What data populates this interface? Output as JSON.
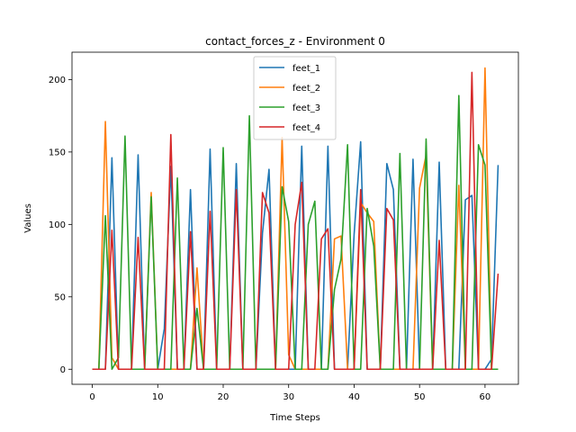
{
  "chart_data": {
    "type": "line",
    "title": "contact_forces_z - Environment 0",
    "xlabel": "Time Steps",
    "ylabel": "Values",
    "xlim": [
      -3.1,
      65.1
    ],
    "ylim": [
      -10.4,
      218.9
    ],
    "xticks": [
      0,
      10,
      20,
      30,
      40,
      50,
      60
    ],
    "yticks": [
      0,
      50,
      100,
      150,
      200
    ],
    "grid": false,
    "legend_position": "upper-center",
    "x": [
      0,
      1,
      2,
      3,
      4,
      5,
      6,
      7,
      8,
      9,
      10,
      11,
      12,
      13,
      14,
      15,
      16,
      17,
      18,
      19,
      20,
      21,
      22,
      23,
      24,
      25,
      26,
      27,
      28,
      29,
      30,
      31,
      32,
      33,
      34,
      35,
      36,
      37,
      38,
      39,
      40,
      41,
      42,
      43,
      44,
      45,
      46,
      47,
      48,
      49,
      50,
      51,
      52,
      53,
      54,
      55,
      56,
      57,
      58,
      59,
      60,
      61,
      62
    ],
    "series": [
      {
        "name": "feet_1",
        "color": "#1f77b4",
        "values": [
          0,
          0,
          0,
          146,
          0,
          0,
          0,
          148,
          0,
          0,
          0,
          28,
          140,
          0,
          0,
          124,
          0,
          0,
          152,
          0,
          0,
          0,
          142,
          0,
          0,
          0,
          94,
          138,
          0,
          0,
          0,
          0,
          154,
          0,
          0,
          0,
          154,
          0,
          0,
          0,
          93,
          157,
          0,
          0,
          0,
          142,
          124,
          0,
          0,
          145,
          0,
          0,
          0,
          143,
          0,
          0,
          0,
          117,
          120,
          0,
          0,
          7,
          141
        ]
      },
      {
        "name": "feet_2",
        "color": "#ff7f0e",
        "values": [
          0,
          0,
          171,
          8,
          0,
          0,
          0,
          0,
          0,
          122,
          0,
          0,
          0,
          0,
          0,
          0,
          70,
          0,
          0,
          0,
          0,
          0,
          0,
          0,
          0,
          0,
          0,
          0,
          0,
          160,
          10,
          0,
          0,
          0,
          0,
          0,
          0,
          90,
          92,
          0,
          0,
          115,
          108,
          102,
          0,
          0,
          0,
          0,
          0,
          0,
          125,
          148,
          0,
          0,
          0,
          0,
          127,
          0,
          0,
          0,
          208,
          0,
          0
        ]
      },
      {
        "name": "feet_3",
        "color": "#2ca02c",
        "values": [
          0,
          0,
          106,
          0,
          8,
          161,
          0,
          0,
          0,
          119,
          0,
          0,
          0,
          132,
          0,
          0,
          42,
          0,
          0,
          0,
          153,
          0,
          0,
          0,
          175,
          0,
          0,
          0,
          0,
          126,
          102,
          0,
          0,
          100,
          116,
          0,
          0,
          55,
          76,
          155,
          0,
          0,
          111,
          85,
          0,
          0,
          0,
          149,
          0,
          0,
          0,
          159,
          0,
          0,
          0,
          0,
          189,
          0,
          0,
          155,
          141,
          0,
          0
        ]
      },
      {
        "name": "feet_4",
        "color": "#d62728",
        "values": [
          0,
          0,
          0,
          96,
          0,
          0,
          0,
          91,
          0,
          0,
          0,
          0,
          162,
          0,
          0,
          95,
          0,
          0,
          109,
          0,
          0,
          0,
          124,
          0,
          0,
          0,
          122,
          108,
          0,
          0,
          0,
          100,
          129,
          0,
          0,
          90,
          97,
          0,
          0,
          0,
          0,
          124,
          0,
          0,
          0,
          111,
          103,
          0,
          0,
          0,
          0,
          0,
          0,
          89,
          0,
          0,
          0,
          0,
          205,
          0,
          0,
          0,
          66
        ]
      }
    ]
  }
}
